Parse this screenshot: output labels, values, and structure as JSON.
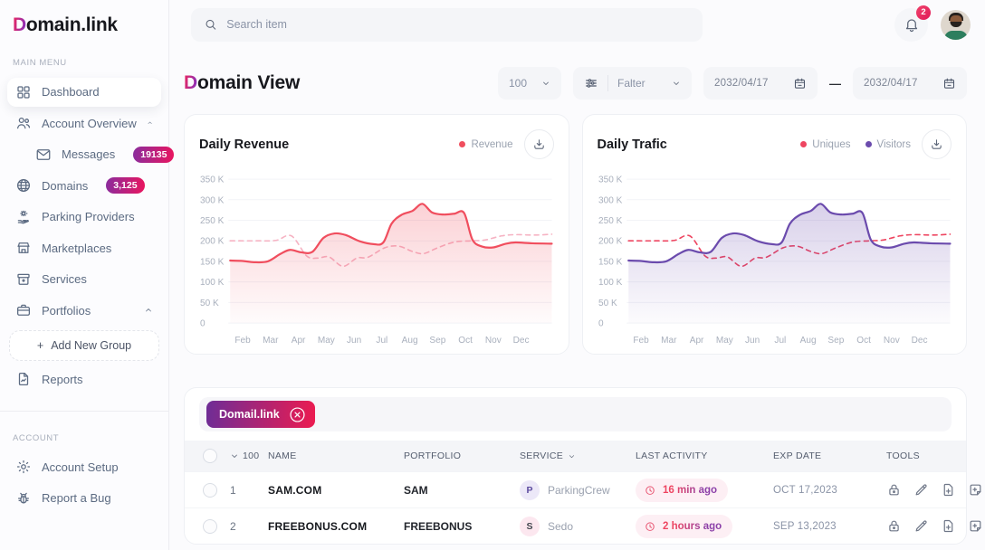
{
  "brand": {
    "logo_d": "D",
    "logo_rest": "omain.link"
  },
  "topbar": {
    "search_placeholder": "Search item",
    "notification_count": "2"
  },
  "sidebar": {
    "main_menu_label": "MAIN MENU",
    "account_label": "ACCOUNT",
    "items": [
      {
        "id": "dashboard",
        "label": "Dashboard",
        "icon": "dashboard",
        "active": true
      },
      {
        "id": "account-overview",
        "label": "Account Overview",
        "icon": "users",
        "chevron": "up"
      },
      {
        "id": "messages",
        "label": "Messages",
        "icon": "mail",
        "badge": "19135",
        "indent": true
      },
      {
        "id": "domains",
        "label": "Domains",
        "icon": "globe",
        "badge": "3,125",
        "chevron": "down"
      },
      {
        "id": "parking-providers",
        "label": "Parking Providers",
        "icon": "parking"
      },
      {
        "id": "marketplaces",
        "label": "Marketplaces",
        "icon": "store"
      },
      {
        "id": "services",
        "label": "Services",
        "icon": "box"
      },
      {
        "id": "portfolios",
        "label": "Portfolios",
        "icon": "briefcase",
        "chevron": "up"
      },
      {
        "id": "add-new-group",
        "label": "Add New Group",
        "plus": "+",
        "type": "dashed"
      },
      {
        "id": "reports",
        "label": "Reports",
        "icon": "report"
      }
    ],
    "account_items": [
      {
        "id": "account-setup",
        "label": "Account Setup",
        "icon": "gear"
      },
      {
        "id": "report-a-bug",
        "label": "Report a Bug",
        "icon": "bug"
      }
    ]
  },
  "header": {
    "title_d": "D",
    "title_rest": "omain View"
  },
  "controls": {
    "page_size": "100",
    "filter_label": "Falter",
    "date_from": "2032/04/17",
    "date_separator": "—",
    "date_to": "2032/04/17"
  },
  "chart_data": [
    {
      "type": "area",
      "title": "Daily Revenue",
      "categories": [
        "Feb",
        "Mar",
        "Apr",
        "May",
        "Jun",
        "Jul",
        "Aug",
        "Sep",
        "Oct",
        "Nov",
        "Dec"
      ],
      "ylim": [
        0,
        350
      ],
      "xlim": [
        -0.45,
        11.1
      ],
      "ytick_labels": [
        "0",
        "50 K",
        "100 K",
        "150 K",
        "200 K",
        "250 K",
        "300 K",
        "350 K"
      ],
      "grid": true,
      "legend_position": "top-right",
      "legend": [
        {
          "label": "Revenue",
          "color": "#f04e5e"
        }
      ],
      "series": [
        {
          "style": "dashed",
          "color": "#f6b3c3",
          "points": [
            [
              -0.45,
              200
            ],
            [
              0.5,
              200
            ],
            [
              1.2,
              201
            ],
            [
              1.75,
              212
            ],
            [
              2.3,
              163
            ],
            [
              2.7,
              158
            ],
            [
              3.1,
              161
            ],
            [
              3.6,
              138
            ],
            [
              4.1,
              158
            ],
            [
              4.5,
              160
            ],
            [
              5.1,
              183
            ],
            [
              5.6,
              187
            ],
            [
              6.1,
              174
            ],
            [
              6.5,
              169
            ],
            [
              7.0,
              183
            ],
            [
              7.6,
              197
            ],
            [
              8.2,
              200
            ],
            [
              8.7,
              202
            ],
            [
              9.3,
              212
            ],
            [
              9.8,
              215
            ],
            [
              10.5,
              214
            ],
            [
              11.1,
              216
            ]
          ]
        },
        {
          "name": "Revenue",
          "style": "solid",
          "color": "#f04e5e",
          "fill": true,
          "points": [
            [
              -0.45,
              152
            ],
            [
              0,
              151
            ],
            [
              0.4,
              148
            ],
            [
              0.9,
              150
            ],
            [
              1.35,
              168
            ],
            [
              1.7,
              178
            ],
            [
              2.1,
              172
            ],
            [
              2.5,
              173
            ],
            [
              2.9,
              207
            ],
            [
              3.3,
              218
            ],
            [
              3.7,
              214
            ],
            [
              4.2,
              199
            ],
            [
              4.7,
              192
            ],
            [
              5.05,
              196
            ],
            [
              5.35,
              242
            ],
            [
              5.7,
              263
            ],
            [
              6.1,
              273
            ],
            [
              6.45,
              290
            ],
            [
              6.8,
              269
            ],
            [
              7.2,
              264
            ],
            [
              7.6,
              266
            ],
            [
              7.95,
              268
            ],
            [
              8.25,
              203
            ],
            [
              8.6,
              186
            ],
            [
              9.0,
              184
            ],
            [
              9.45,
              193
            ],
            [
              9.8,
              196
            ],
            [
              10.4,
              194
            ],
            [
              11.1,
              193
            ]
          ]
        }
      ]
    },
    {
      "type": "area",
      "title": "Daily Trafic",
      "categories": [
        "Feb",
        "Mar",
        "Apr",
        "May",
        "Jun",
        "Jul",
        "Aug",
        "Sep",
        "Oct",
        "Nov",
        "Dec"
      ],
      "ylim": [
        0,
        350
      ],
      "xlim": [
        -0.45,
        11.1
      ],
      "ytick_labels": [
        "0",
        "50 K",
        "100 K",
        "150 K",
        "200 K",
        "250 K",
        "300 K",
        "350 K"
      ],
      "grid": true,
      "legend_position": "top-right",
      "legend": [
        {
          "label": "Uniques",
          "color": "#ee4560"
        },
        {
          "label": "Visitors",
          "color": "#6b4bad"
        }
      ],
      "series": [
        {
          "name": "Uniques",
          "style": "dashed",
          "color": "#ee4560",
          "points": [
            [
              -0.45,
              200
            ],
            [
              0.5,
              200
            ],
            [
              1.2,
              201
            ],
            [
              1.75,
              212
            ],
            [
              2.3,
              163
            ],
            [
              2.7,
              158
            ],
            [
              3.1,
              161
            ],
            [
              3.6,
              138
            ],
            [
              4.1,
              158
            ],
            [
              4.5,
              160
            ],
            [
              5.1,
              183
            ],
            [
              5.6,
              187
            ],
            [
              6.1,
              174
            ],
            [
              6.5,
              169
            ],
            [
              7.0,
              183
            ],
            [
              7.6,
              197
            ],
            [
              8.2,
              200
            ],
            [
              8.7,
              202
            ],
            [
              9.3,
              212
            ],
            [
              9.8,
              215
            ],
            [
              10.5,
              214
            ],
            [
              11.1,
              216
            ]
          ]
        },
        {
          "name": "Visitors",
          "style": "solid",
          "color": "#6b4bad",
          "fill": true,
          "points": [
            [
              -0.45,
              152
            ],
            [
              0,
              151
            ],
            [
              0.4,
              148
            ],
            [
              0.9,
              150
            ],
            [
              1.35,
              168
            ],
            [
              1.7,
              178
            ],
            [
              2.1,
              172
            ],
            [
              2.5,
              173
            ],
            [
              2.9,
              207
            ],
            [
              3.3,
              218
            ],
            [
              3.7,
              214
            ],
            [
              4.2,
              199
            ],
            [
              4.7,
              192
            ],
            [
              5.05,
              196
            ],
            [
              5.35,
              242
            ],
            [
              5.7,
              263
            ],
            [
              6.1,
              273
            ],
            [
              6.45,
              290
            ],
            [
              6.8,
              269
            ],
            [
              7.2,
              264
            ],
            [
              7.6,
              266
            ],
            [
              7.95,
              268
            ],
            [
              8.25,
              203
            ],
            [
              8.6,
              186
            ],
            [
              9.0,
              184
            ],
            [
              9.45,
              193
            ],
            [
              9.8,
              196
            ],
            [
              10.4,
              194
            ],
            [
              11.1,
              193
            ]
          ]
        }
      ]
    }
  ],
  "table": {
    "filter_chip": "Domail.link",
    "page_size": "100",
    "columns": [
      {
        "label": "NAME"
      },
      {
        "label": "PORTFOLIO"
      },
      {
        "label": "SERVICE",
        "chevron": true
      },
      {
        "label": "LAST ACTIVITY"
      },
      {
        "label": "EXP DATE"
      },
      {
        "label": "TOOLS"
      }
    ],
    "tools_icons": [
      "lock",
      "pencil",
      "file-plus",
      "note-plus"
    ],
    "rows": [
      {
        "num": "1",
        "name": "SAM.COM",
        "portfolio": "SAM",
        "service_initial": "P",
        "service": "ParkingCrew",
        "service_tint": "purple",
        "activity": "16 min ago",
        "exp_date": "OCT 17,2023"
      },
      {
        "num": "2",
        "name": "FREEBONUS.COM",
        "portfolio": "FREEBONUS",
        "service_initial": "S",
        "service": "Sedo",
        "service_tint": "pink",
        "activity": "2 hours ago",
        "exp_date": "SEP 13,2023"
      }
    ]
  },
  "colors": {
    "gradient_from": "#8a2d9e",
    "gradient_to": "#ea155e",
    "revenue": "#f04e5e",
    "revenue_dashed": "#f6b3c3",
    "visitors": "#6b4bad",
    "uniques": "#ee4560",
    "badge_red": "#e93a63",
    "axis_text": "#a9b0bd",
    "gridline": "#f2f3f7"
  }
}
